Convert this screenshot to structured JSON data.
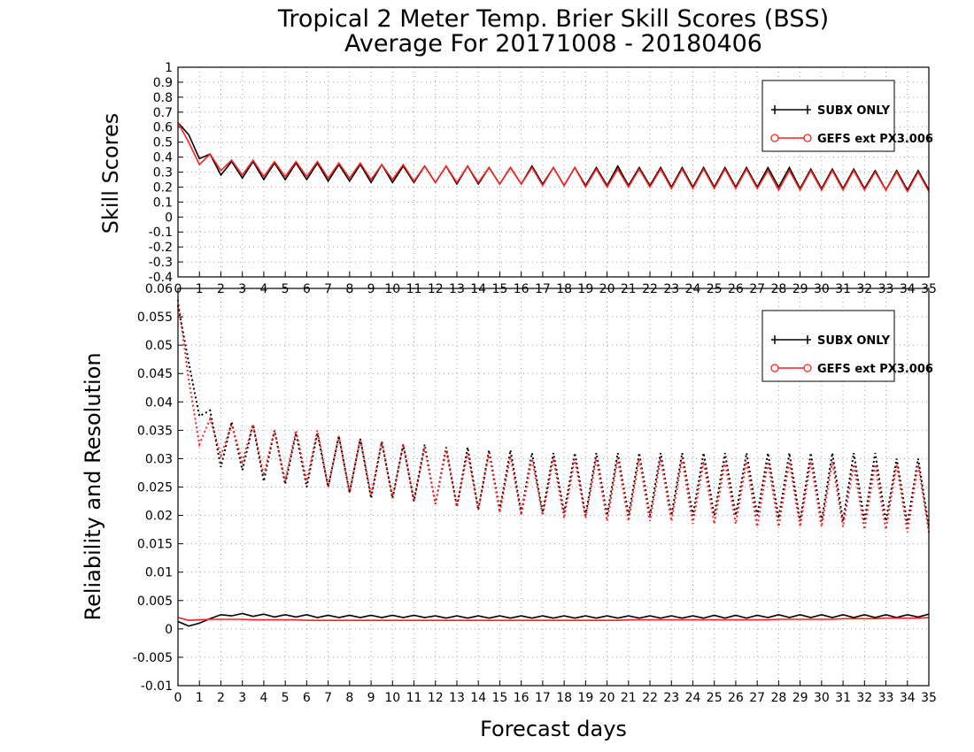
{
  "title": {
    "line1": "Tropical 2 Meter Temp. Brier Skill Scores (BSS)",
    "line2": "Average For 20171008 - 20180406"
  },
  "x_axis": {
    "label": "Forecast days",
    "tick_labels": [
      "0",
      "1",
      "2",
      "3",
      "4",
      "5",
      "6",
      "7",
      "8",
      "9",
      "10",
      "11",
      "12",
      "13",
      "14",
      "15",
      "16",
      "17",
      "18",
      "19",
      "20",
      "21",
      "22",
      "23",
      "24",
      "25",
      "26",
      "27",
      "28",
      "29",
      "30",
      "31",
      "32",
      "33",
      "34",
      "35"
    ]
  },
  "colors": {
    "subx": "#000000",
    "gefs": "#ff2020",
    "grid": "#a0a0a0"
  },
  "legend": {
    "top": [
      "SUBX ONLY",
      "GEFS ext PX3.006"
    ],
    "bottom": [
      "SUBX ONLY",
      "GEFS ext PX3.006"
    ]
  },
  "chart_data": [
    {
      "type": "line",
      "ylabel": "Skill Scores",
      "xlim": [
        0,
        35
      ],
      "ylim": [
        -0.4,
        1.0
      ],
      "yticks": [
        "1",
        "0.9",
        "0.8",
        "0.7",
        "0.6",
        "0.5",
        "0.4",
        "0.3",
        "0.2",
        "0.1",
        "0",
        "-0.1",
        "-0.2",
        "-0.3",
        "-0.4"
      ],
      "grid": true,
      "legend_position": "top-right",
      "x": [
        0,
        0.5,
        1,
        1.5,
        2,
        2.5,
        3,
        3.5,
        4,
        4.5,
        5,
        5.5,
        6,
        6.5,
        7,
        7.5,
        8,
        8.5,
        9,
        9.5,
        10,
        10.5,
        11,
        11.5,
        12,
        12.5,
        13,
        13.5,
        14,
        14.5,
        15,
        15.5,
        16,
        16.5,
        17,
        17.5,
        18,
        18.5,
        19,
        19.5,
        20,
        20.5,
        21,
        21.5,
        22,
        22.5,
        23,
        23.5,
        24,
        24.5,
        25,
        25.5,
        26,
        26.5,
        27,
        27.5,
        28,
        28.5,
        29,
        29.5,
        30,
        30.5,
        31,
        31.5,
        32,
        32.5,
        33,
        33.5,
        34,
        34.5,
        35
      ],
      "series": [
        {
          "name": "SUBX ONLY",
          "values": [
            0.63,
            0.55,
            0.39,
            0.42,
            0.28,
            0.37,
            0.26,
            0.37,
            0.25,
            0.36,
            0.25,
            0.36,
            0.25,
            0.36,
            0.24,
            0.35,
            0.24,
            0.35,
            0.23,
            0.35,
            0.23,
            0.34,
            0.23,
            0.34,
            0.23,
            0.34,
            0.22,
            0.34,
            0.22,
            0.33,
            0.22,
            0.33,
            0.22,
            0.34,
            0.22,
            0.33,
            0.21,
            0.33,
            0.21,
            0.33,
            0.21,
            0.34,
            0.21,
            0.33,
            0.21,
            0.33,
            0.2,
            0.33,
            0.2,
            0.33,
            0.2,
            0.33,
            0.2,
            0.33,
            0.2,
            0.33,
            0.2,
            0.33,
            0.19,
            0.32,
            0.19,
            0.32,
            0.19,
            0.32,
            0.19,
            0.31,
            0.18,
            0.31,
            0.18,
            0.31,
            0.18
          ]
        },
        {
          "name": "GEFS ext PX3.006",
          "values": [
            0.63,
            0.5,
            0.35,
            0.42,
            0.31,
            0.38,
            0.28,
            0.38,
            0.27,
            0.37,
            0.27,
            0.37,
            0.27,
            0.37,
            0.26,
            0.36,
            0.26,
            0.36,
            0.25,
            0.35,
            0.25,
            0.35,
            0.24,
            0.34,
            0.23,
            0.34,
            0.23,
            0.34,
            0.23,
            0.33,
            0.22,
            0.33,
            0.22,
            0.33,
            0.21,
            0.33,
            0.21,
            0.33,
            0.2,
            0.32,
            0.2,
            0.32,
            0.2,
            0.32,
            0.2,
            0.32,
            0.19,
            0.32,
            0.19,
            0.32,
            0.19,
            0.32,
            0.19,
            0.32,
            0.19,
            0.31,
            0.18,
            0.31,
            0.18,
            0.31,
            0.18,
            0.31,
            0.18,
            0.31,
            0.18,
            0.3,
            0.18,
            0.3,
            0.17,
            0.3,
            0.17
          ]
        }
      ]
    },
    {
      "type": "line",
      "ylabel": "Reliability and Resolution",
      "xlim": [
        0,
        35
      ],
      "ylim": [
        -0.01,
        0.06
      ],
      "yticks": [
        "0.06",
        "0.055",
        "0.05",
        "0.045",
        "0.04",
        "0.035",
        "0.03",
        "0.025",
        "0.02",
        "0.015",
        "0.01",
        "0.005",
        "0",
        "-0.005",
        "-0.01"
      ],
      "grid": true,
      "legend_position": "top-right",
      "x": [
        0,
        0.5,
        1,
        1.5,
        2,
        2.5,
        3,
        3.5,
        4,
        4.5,
        5,
        5.5,
        6,
        6.5,
        7,
        7.5,
        8,
        8.5,
        9,
        9.5,
        10,
        10.5,
        11,
        11.5,
        12,
        12.5,
        13,
        13.5,
        14,
        14.5,
        15,
        15.5,
        16,
        16.5,
        17,
        17.5,
        18,
        18.5,
        19,
        19.5,
        20,
        20.5,
        21,
        21.5,
        22,
        22.5,
        23,
        23.5,
        24,
        24.5,
        25,
        25.5,
        26,
        26.5,
        27,
        27.5,
        28,
        28.5,
        29,
        29.5,
        30,
        30.5,
        31,
        31.5,
        32,
        32.5,
        33,
        33.5,
        34,
        34.5,
        35
      ],
      "series": [
        {
          "name": "SUBX ONLY resolution",
          "style": "dotted",
          "values": [
            0.057,
            0.047,
            0.0375,
            0.0385,
            0.0285,
            0.0365,
            0.028,
            0.036,
            0.026,
            0.035,
            0.0255,
            0.0345,
            0.025,
            0.0345,
            0.025,
            0.034,
            0.024,
            0.0335,
            0.023,
            0.033,
            0.023,
            0.0325,
            0.0225,
            0.0325,
            0.022,
            0.032,
            0.0215,
            0.032,
            0.021,
            0.0315,
            0.021,
            0.0315,
            0.0205,
            0.031,
            0.0205,
            0.031,
            0.0205,
            0.031,
            0.02,
            0.031,
            0.02,
            0.031,
            0.02,
            0.031,
            0.02,
            0.031,
            0.02,
            0.031,
            0.02,
            0.031,
            0.02,
            0.031,
            0.02,
            0.031,
            0.02,
            0.031,
            0.0195,
            0.031,
            0.019,
            0.031,
            0.019,
            0.031,
            0.019,
            0.031,
            0.019,
            0.031,
            0.019,
            0.03,
            0.0185,
            0.03,
            0.018
          ]
        },
        {
          "name": "GEFS ext PX3.006 resolution",
          "style": "dotted",
          "values": [
            0.058,
            0.044,
            0.0325,
            0.037,
            0.0305,
            0.036,
            0.0295,
            0.036,
            0.027,
            0.035,
            0.026,
            0.035,
            0.026,
            0.035,
            0.025,
            0.034,
            0.024,
            0.0335,
            0.0235,
            0.033,
            0.023,
            0.0325,
            0.0225,
            0.032,
            0.022,
            0.0315,
            0.0215,
            0.031,
            0.021,
            0.031,
            0.0205,
            0.0305,
            0.02,
            0.03,
            0.02,
            0.03,
            0.0195,
            0.03,
            0.0195,
            0.03,
            0.019,
            0.03,
            0.019,
            0.03,
            0.019,
            0.03,
            0.019,
            0.03,
            0.0185,
            0.0295,
            0.0185,
            0.0295,
            0.0185,
            0.0295,
            0.018,
            0.0295,
            0.018,
            0.0295,
            0.018,
            0.0295,
            0.018,
            0.0295,
            0.018,
            0.029,
            0.0175,
            0.029,
            0.0175,
            0.029,
            0.017,
            0.029,
            0.017
          ]
        },
        {
          "name": "SUBX ONLY reliability",
          "style": "solid",
          "values": [
            0.0013,
            0.0005,
            0.001,
            0.0018,
            0.0025,
            0.0023,
            0.0027,
            0.0022,
            0.0026,
            0.0021,
            0.0025,
            0.0021,
            0.0025,
            0.002,
            0.0024,
            0.002,
            0.0024,
            0.002,
            0.0024,
            0.002,
            0.0024,
            0.002,
            0.0024,
            0.002,
            0.0023,
            0.0019,
            0.0023,
            0.0019,
            0.0023,
            0.0019,
            0.0023,
            0.0019,
            0.0023,
            0.0019,
            0.0023,
            0.0019,
            0.0023,
            0.0019,
            0.0023,
            0.0019,
            0.0023,
            0.0019,
            0.0023,
            0.0019,
            0.0023,
            0.0019,
            0.0023,
            0.0019,
            0.0023,
            0.0019,
            0.0024,
            0.0019,
            0.0024,
            0.0019,
            0.0024,
            0.002,
            0.0025,
            0.002,
            0.0025,
            0.002,
            0.0025,
            0.002,
            0.0025,
            0.002,
            0.0025,
            0.002,
            0.0025,
            0.002,
            0.0025,
            0.0021,
            0.0026
          ]
        },
        {
          "name": "GEFS ext PX3.006 reliability",
          "style": "solid",
          "values": [
            0.002,
            0.0015,
            0.0016,
            0.0017,
            0.0017,
            0.0017,
            0.0017,
            0.0016,
            0.0016,
            0.0016,
            0.0016,
            0.0016,
            0.0015,
            0.0015,
            0.0015,
            0.0015,
            0.0015,
            0.0015,
            0.0015,
            0.0015,
            0.0015,
            0.0015,
            0.0015,
            0.0015,
            0.0015,
            0.0015,
            0.0015,
            0.0015,
            0.0015,
            0.0015,
            0.0015,
            0.0015,
            0.0015,
            0.0015,
            0.0015,
            0.0015,
            0.0015,
            0.0015,
            0.0015,
            0.0015,
            0.0015,
            0.0015,
            0.0016,
            0.0016,
            0.0016,
            0.0016,
            0.0016,
            0.0016,
            0.0016,
            0.0016,
            0.0016,
            0.0016,
            0.0016,
            0.0016,
            0.0016,
            0.0016,
            0.0017,
            0.0017,
            0.0017,
            0.0017,
            0.0017,
            0.0017,
            0.0018,
            0.0018,
            0.0018,
            0.0018,
            0.0019,
            0.0019,
            0.0019,
            0.0019,
            0.002
          ]
        }
      ]
    }
  ]
}
